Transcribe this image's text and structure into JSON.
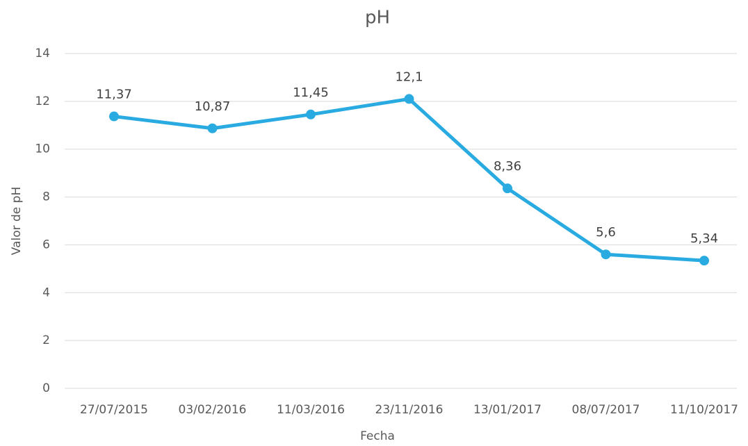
{
  "chart_data": {
    "type": "line",
    "title": "pH",
    "x_label": "Fecha",
    "y_label": "Valor de pH",
    "categories": [
      "27/07/2015",
      "03/02/2016",
      "11/03/2016",
      "23/11/2016",
      "13/01/2017",
      "08/07/2017",
      "11/10/2017"
    ],
    "series": [
      {
        "name": "pH",
        "color": "#29abe2",
        "values": [
          11.37,
          10.87,
          11.45,
          12.1,
          8.36,
          5.6,
          5.34
        ],
        "value_labels": [
          "11,37",
          "10,87",
          "11,45",
          "12,1",
          "8,36",
          "5,6",
          "5,34"
        ]
      }
    ],
    "ylim": [
      0,
      14
    ],
    "yticks": [
      0,
      2,
      4,
      6,
      8,
      10,
      12,
      14
    ],
    "grid": true
  }
}
